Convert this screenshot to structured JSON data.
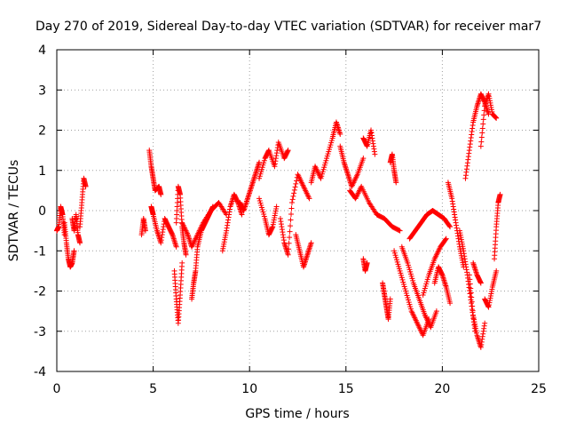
{
  "chart_data": {
    "type": "scatter",
    "title": "Day 270 of 2019, Sidereal Day-to-day VTEC variation (SDTVAR) for receiver mar7",
    "xlabel": "GPS time / hours",
    "ylabel": "SDTVAR / TECUs",
    "xlim": [
      0,
      25
    ],
    "ylim": [
      -4,
      4
    ],
    "xticks": [
      "0",
      "5",
      "10",
      "15",
      "20",
      "25"
    ],
    "yticks": [
      "-4",
      "-3",
      "-2",
      "-1",
      "0",
      "1",
      "2",
      "3",
      "4"
    ],
    "grid": true,
    "marker": "+",
    "color": "#ff0000",
    "series": [
      {
        "name": "seg-a1",
        "x": [
          0.0,
          0.1,
          0.2,
          0.3,
          0.4
        ],
        "y": [
          -0.5,
          -0.4,
          0.1,
          -0.1,
          -0.6
        ]
      },
      {
        "name": "seg-a2",
        "x": [
          0.4,
          0.5,
          0.6,
          0.7,
          0.8,
          0.9
        ],
        "y": [
          -0.3,
          -0.8,
          -1.2,
          -1.4,
          -1.3,
          -1.0
        ]
      },
      {
        "name": "seg-a3",
        "x": [
          0.8,
          0.9,
          1.0,
          1.1,
          1.2
        ],
        "y": [
          -0.2,
          -0.5,
          -0.1,
          -0.6,
          -0.8
        ]
      },
      {
        "name": "seg-a4",
        "x": [
          1.2,
          1.3,
          1.4,
          1.5
        ],
        "y": [
          -0.4,
          0.2,
          0.8,
          0.6
        ]
      },
      {
        "name": "seg-b1",
        "x": [
          4.4,
          4.5,
          4.6
        ],
        "y": [
          -0.6,
          -0.2,
          -0.5
        ]
      },
      {
        "name": "seg-b2",
        "x": [
          4.8,
          4.9,
          5.0,
          5.1,
          5.3,
          5.4
        ],
        "y": [
          1.5,
          1.1,
          0.8,
          0.5,
          0.6,
          0.4
        ]
      },
      {
        "name": "seg-b3",
        "x": [
          4.9,
          5.0,
          5.2,
          5.4,
          5.6,
          5.8,
          6.0,
          6.2
        ],
        "y": [
          0.1,
          -0.1,
          -0.5,
          -0.8,
          -0.2,
          -0.4,
          -0.6,
          -0.9
        ]
      },
      {
        "name": "seg-b4",
        "x": [
          6.2,
          6.3,
          6.4,
          6.5,
          6.6,
          6.7
        ],
        "y": [
          -0.3,
          0.6,
          0.4,
          -0.4,
          -0.8,
          -1.1
        ]
      },
      {
        "name": "seg-b5",
        "x": [
          6.1,
          6.2,
          6.3,
          6.4,
          6.5
        ],
        "y": [
          -1.5,
          -2.2,
          -2.8,
          -2.1,
          -1.3
        ]
      },
      {
        "name": "seg-b6",
        "x": [
          7.0,
          7.1,
          7.2,
          7.3,
          7.5,
          7.7,
          7.9,
          8.1
        ],
        "y": [
          -2.2,
          -1.8,
          -1.5,
          -0.9,
          -0.5,
          -0.3,
          -0.1,
          0.1
        ]
      },
      {
        "name": "seg-b7",
        "x": [
          6.5,
          6.8,
          7.0,
          7.3,
          7.6,
          8.0,
          8.4,
          8.8
        ],
        "y": [
          -0.3,
          -0.6,
          -0.9,
          -0.6,
          -0.3,
          0.0,
          0.2,
          -0.1
        ]
      },
      {
        "name": "seg-b8",
        "x": [
          8.6,
          8.8,
          9.0,
          9.2,
          9.4,
          9.6
        ],
        "y": [
          -1.0,
          -0.5,
          0.1,
          0.4,
          0.2,
          -0.1
        ]
      },
      {
        "name": "seg-c1",
        "x": [
          9.5,
          9.7,
          9.9,
          10.1,
          10.3,
          10.5
        ],
        "y": [
          0.2,
          0.0,
          0.3,
          0.6,
          0.9,
          1.2
        ]
      },
      {
        "name": "seg-c2",
        "x": [
          10.5,
          10.8,
          11.0,
          11.3,
          11.5,
          11.8,
          12.0
        ],
        "y": [
          0.8,
          1.3,
          1.5,
          1.1,
          1.7,
          1.3,
          1.5
        ]
      },
      {
        "name": "seg-c3",
        "x": [
          10.5,
          10.8,
          11.0,
          11.2,
          11.4
        ],
        "y": [
          0.3,
          -0.2,
          -0.6,
          -0.4,
          0.1
        ]
      },
      {
        "name": "seg-c4",
        "x": [
          11.6,
          11.8,
          12.0,
          12.2,
          12.5,
          12.8,
          13.1
        ],
        "y": [
          -0.2,
          -0.8,
          -1.1,
          0.2,
          0.9,
          0.6,
          0.3
        ]
      },
      {
        "name": "seg-c5",
        "x": [
          12.4,
          12.6,
          12.8,
          13.0,
          13.2
        ],
        "y": [
          -0.6,
          -1.0,
          -1.4,
          -1.1,
          -0.8
        ]
      },
      {
        "name": "seg-c6",
        "x": [
          13.2,
          13.4,
          13.7,
          14.0,
          14.3,
          14.5,
          14.7
        ],
        "y": [
          0.7,
          1.1,
          0.8,
          1.3,
          1.8,
          2.2,
          1.9
        ]
      },
      {
        "name": "seg-c7",
        "x": [
          14.7,
          14.9,
          15.1,
          15.3,
          15.6,
          15.9
        ],
        "y": [
          1.6,
          1.2,
          0.9,
          0.6,
          0.9,
          1.3
        ]
      },
      {
        "name": "seg-c8",
        "x": [
          15.9,
          16.1,
          16.3,
          16.5
        ],
        "y": [
          1.8,
          1.6,
          2.0,
          1.4
        ]
      },
      {
        "name": "seg-c9",
        "x": [
          15.2,
          15.5,
          15.8,
          16.2,
          16.6,
          17.0,
          17.4,
          17.8
        ],
        "y": [
          0.5,
          0.3,
          0.6,
          0.2,
          -0.1,
          -0.2,
          -0.4,
          -0.5
        ]
      },
      {
        "name": "seg-d1",
        "x": [
          15.9,
          16.0,
          16.1
        ],
        "y": [
          -1.2,
          -1.5,
          -1.3
        ]
      },
      {
        "name": "seg-d2",
        "x": [
          16.9,
          17.0,
          17.1,
          17.2,
          17.3
        ],
        "y": [
          -1.8,
          -2.1,
          -2.4,
          -2.7,
          -2.2
        ]
      },
      {
        "name": "seg-d3",
        "x": [
          17.3,
          17.4,
          17.5,
          17.6
        ],
        "y": [
          1.2,
          1.4,
          1.0,
          0.7
        ]
      },
      {
        "name": "seg-d4",
        "x": [
          17.5,
          17.8,
          18.1,
          18.4,
          18.7,
          19.0,
          19.3
        ],
        "y": [
          -1.0,
          -1.5,
          -2.0,
          -2.5,
          -2.8,
          -3.1,
          -2.7
        ]
      },
      {
        "name": "seg-d5",
        "x": [
          17.9,
          18.2,
          18.5,
          18.8,
          19.1,
          19.4,
          19.7
        ],
        "y": [
          -0.9,
          -1.3,
          -1.8,
          -2.2,
          -2.6,
          -2.9,
          -2.5
        ]
      },
      {
        "name": "seg-d6",
        "x": [
          19.0,
          19.3,
          19.6,
          19.9,
          20.2
        ],
        "y": [
          -2.1,
          -1.6,
          -1.2,
          -0.9,
          -0.7
        ]
      },
      {
        "name": "seg-d7",
        "x": [
          18.3,
          18.6,
          18.9,
          19.2,
          19.5,
          19.8,
          20.1,
          20.4
        ],
        "y": [
          -0.7,
          -0.5,
          -0.3,
          -0.1,
          0.0,
          -0.1,
          -0.2,
          -0.4
        ]
      },
      {
        "name": "seg-d8",
        "x": [
          19.6,
          19.8,
          20.0,
          20.2,
          20.4
        ],
        "y": [
          -1.8,
          -1.4,
          -1.6,
          -1.9,
          -2.3
        ]
      },
      {
        "name": "seg-e1",
        "x": [
          20.3,
          20.5,
          20.7,
          20.9,
          21.1
        ],
        "y": [
          0.7,
          0.3,
          -0.3,
          -0.9,
          -1.4
        ]
      },
      {
        "name": "seg-e2",
        "x": [
          20.9,
          21.1,
          21.3,
          21.5,
          21.7
        ],
        "y": [
          -0.5,
          -1.0,
          -1.6,
          -2.3,
          -3.0
        ]
      },
      {
        "name": "seg-e3",
        "x": [
          21.4,
          21.6,
          21.8,
          22.0,
          22.2
        ],
        "y": [
          -1.6,
          -2.6,
          -3.1,
          -3.4,
          -2.8
        ]
      },
      {
        "name": "seg-e4",
        "x": [
          21.2,
          21.4,
          21.6,
          21.8,
          22.0,
          22.2,
          22.4
        ],
        "y": [
          0.8,
          1.5,
          2.2,
          2.6,
          2.9,
          2.7,
          2.4
        ]
      },
      {
        "name": "seg-e5",
        "x": [
          22.0,
          22.2,
          22.4,
          22.6,
          22.8
        ],
        "y": [
          1.6,
          2.6,
          2.9,
          2.4,
          2.3
        ]
      },
      {
        "name": "seg-e6",
        "x": [
          21.6,
          21.8,
          22.0
        ],
        "y": [
          -1.3,
          -1.6,
          -1.8
        ]
      },
      {
        "name": "seg-e7",
        "x": [
          22.2,
          22.4,
          22.6,
          22.8
        ],
        "y": [
          -2.2,
          -2.4,
          -1.9,
          -1.5
        ]
      },
      {
        "name": "seg-e8",
        "x": [
          22.7,
          22.8,
          22.9,
          23.0
        ],
        "y": [
          -1.2,
          -0.4,
          0.2,
          0.4
        ]
      }
    ]
  }
}
